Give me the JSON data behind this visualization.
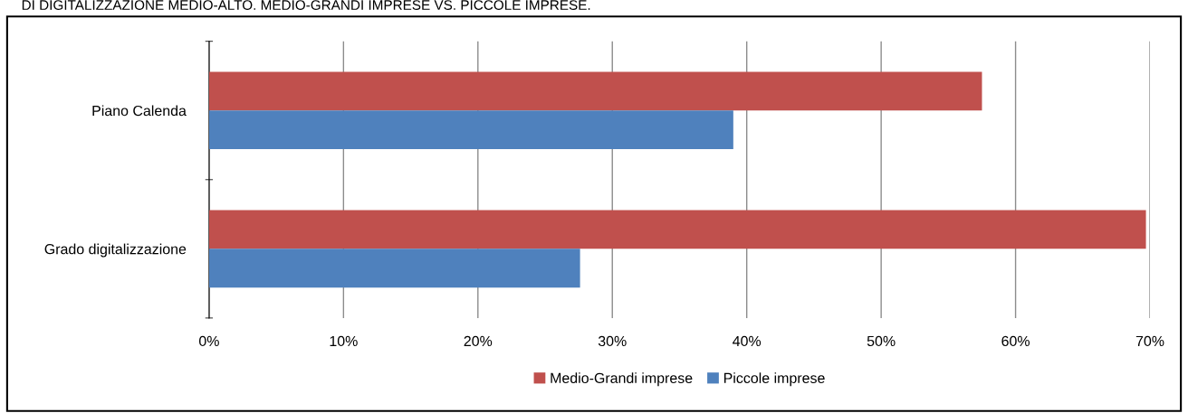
{
  "chart_data": {
    "type": "bar",
    "orientation": "horizontal",
    "title": "DI DIGITALIZZAZIONE MEDIO-ALTO. MEDIO-GRANDI IMPRESE VS. PICCOLE IMPRESE.",
    "categories": [
      "Piano Calenda",
      "Grado digitalizzazione"
    ],
    "series": [
      {
        "name": "Medio-Grandi imprese",
        "color": "#c0504d",
        "values": [
          57.5,
          69.7
        ]
      },
      {
        "name": "Piccole imprese",
        "color": "#4f81bd",
        "values": [
          39.0,
          27.6
        ]
      }
    ],
    "xlim": [
      0,
      70
    ],
    "xticks": [
      {
        "value": 0,
        "label": "0%"
      },
      {
        "value": 10,
        "label": "10%"
      },
      {
        "value": 20,
        "label": "20%"
      },
      {
        "value": 30,
        "label": "30%"
      },
      {
        "value": 40,
        "label": "40%"
      },
      {
        "value": 50,
        "label": "50%"
      },
      {
        "value": 60,
        "label": "60%"
      },
      {
        "value": 70,
        "label": "70%"
      }
    ],
    "grid": "x",
    "legend": "bottom"
  }
}
